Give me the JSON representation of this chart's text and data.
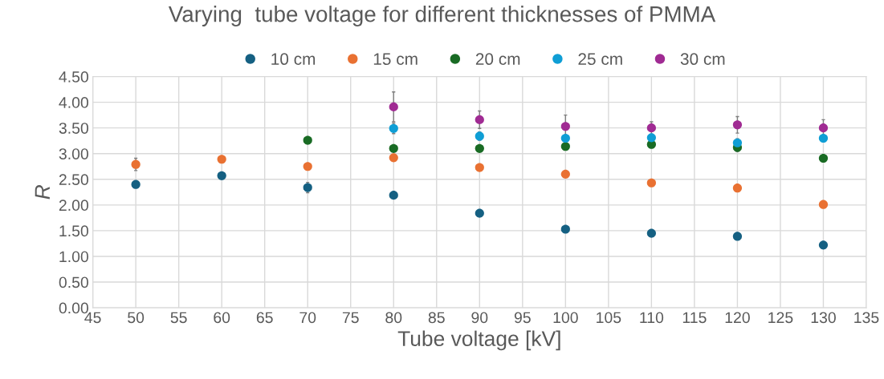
{
  "chart_data": {
    "type": "scatter",
    "title": "Varying  tube voltage for different thicknesses of PMMA",
    "xlabel": "Tube voltage [kV]",
    "ylabel": "R",
    "xlim": [
      45,
      135
    ],
    "xticks": [
      45,
      50,
      55,
      60,
      65,
      70,
      75,
      80,
      85,
      90,
      95,
      100,
      105,
      110,
      115,
      120,
      125,
      130,
      135
    ],
    "ylim": [
      0,
      4.5
    ],
    "yticks": [
      {
        "value": 0,
        "label": "0.00"
      },
      {
        "value": 0.5,
        "label": "0.50"
      },
      {
        "value": 1,
        "label": "1.00"
      },
      {
        "value": 1.5,
        "label": "1.50"
      },
      {
        "value": 2,
        "label": "2.00"
      },
      {
        "value": 2.5,
        "label": "2.50"
      },
      {
        "value": 3,
        "label": "3.00"
      },
      {
        "value": 3.5,
        "label": "3.50"
      },
      {
        "value": 4,
        "label": "4.00"
      },
      {
        "value": 4.5,
        "label": "4.50"
      }
    ],
    "grid": true,
    "legend": "top",
    "marker": "circle",
    "series": [
      {
        "name": "10 cm",
        "color": "#156082",
        "x": [
          50,
          60,
          70,
          80,
          90,
          100,
          110,
          120,
          130
        ],
        "values": [
          2.4,
          2.57,
          2.34,
          2.19,
          1.84,
          1.53,
          1.45,
          1.39,
          1.22
        ],
        "errors": [
          null,
          null,
          0.1,
          null,
          null,
          0.05,
          null,
          null,
          null
        ]
      },
      {
        "name": "15 cm",
        "color": "#e97132",
        "x": [
          50,
          60,
          70,
          80,
          90,
          100,
          110,
          120,
          130
        ],
        "values": [
          2.79,
          2.89,
          2.75,
          2.92,
          2.73,
          2.6,
          2.43,
          2.33,
          2.01
        ],
        "errors": [
          0.12,
          null,
          null,
          0.06,
          null,
          null,
          null,
          null,
          null
        ]
      },
      {
        "name": "20 cm",
        "color": "#196b24",
        "x": [
          70,
          80,
          90,
          100,
          110,
          120,
          130
        ],
        "values": [
          3.26,
          3.1,
          3.1,
          3.14,
          3.18,
          3.12,
          2.91
        ],
        "errors": [
          null,
          0.06,
          null,
          0.06,
          null,
          0.08,
          0.05
        ]
      },
      {
        "name": "25 cm",
        "color": "#0f9ed5",
        "x": [
          80,
          90,
          100,
          110,
          120,
          130
        ],
        "values": [
          3.49,
          3.34,
          3.3,
          3.31,
          3.21,
          3.3
        ],
        "errors": [
          0.1,
          0.08,
          null,
          null,
          0.08,
          null
        ]
      },
      {
        "name": "30 cm",
        "color": "#a02b93",
        "x": [
          80,
          90,
          100,
          110,
          120,
          130
        ],
        "values": [
          3.91,
          3.66,
          3.53,
          3.5,
          3.56,
          3.5
        ],
        "errors": [
          0.29,
          0.17,
          0.22,
          0.12,
          0.16,
          0.16
        ]
      }
    ]
  }
}
